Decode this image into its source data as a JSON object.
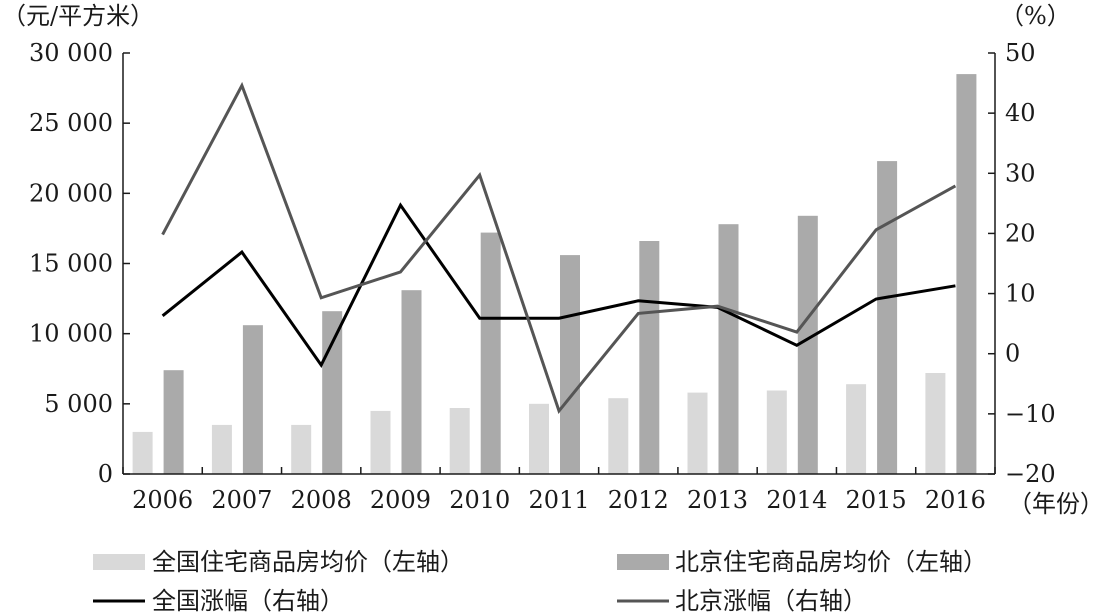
{
  "chart_data": {
    "type": "bar",
    "categories": [
      "2006",
      "2007",
      "2008",
      "2009",
      "2010",
      "2011",
      "2012",
      "2013",
      "2014",
      "2015",
      "2016"
    ],
    "xlabel": "（年份）",
    "ylabel_left": "（元/平方米）",
    "ylabel_right": "（%）",
    "ylim_left": [
      0,
      30000
    ],
    "ylim_right": [
      -20,
      50
    ],
    "left_ticks": [
      0,
      5000,
      10000,
      15000,
      20000,
      25000,
      30000
    ],
    "left_tick_labels": [
      "0",
      "5 000",
      "10 000",
      "15 000",
      "20 000",
      "25 000",
      "30 000"
    ],
    "right_ticks": [
      -20,
      -10,
      0,
      10,
      20,
      30,
      40,
      50
    ],
    "right_tick_labels": [
      "−20",
      "−10",
      "0",
      "10",
      "20",
      "30",
      "40",
      "50"
    ],
    "grid": false,
    "legend_position": "bottom",
    "series": [
      {
        "name": "全国住宅商品房均价（左轴）",
        "type": "bar",
        "axis": "left",
        "color": "#d9d9d9",
        "values": [
          3000,
          3500,
          3500,
          4500,
          4700,
          5000,
          5400,
          5800,
          5950,
          6400,
          7200
        ]
      },
      {
        "name": "北京住宅商品房均价（左轴）",
        "type": "bar",
        "axis": "left",
        "color": "#aaaaaa",
        "values": [
          7400,
          10600,
          11600,
          13100,
          17200,
          15600,
          16600,
          17800,
          18400,
          22300,
          28500
        ]
      },
      {
        "name": "全国涨幅（右轴）",
        "type": "line",
        "axis": "right",
        "color": "#000000",
        "values": [
          6.3,
          16.9,
          -1.9,
          24.7,
          5.9,
          5.9,
          8.8,
          7.7,
          1.4,
          9.1,
          11.3
        ]
      },
      {
        "name": "北京涨幅（右轴）",
        "type": "line",
        "axis": "right",
        "color": "#555555",
        "values": [
          19.8,
          44.6,
          9.3,
          13.6,
          29.7,
          -9.5,
          6.7,
          7.9,
          3.6,
          20.6,
          27.9
        ]
      }
    ]
  }
}
